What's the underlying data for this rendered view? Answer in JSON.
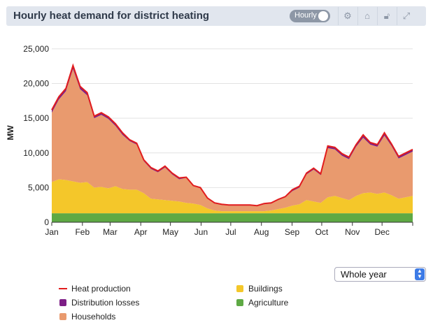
{
  "header": {
    "title": "Hourly heat demand for district heating",
    "toggle_label": "Hourly"
  },
  "controls": {
    "period_select": "Whole year"
  },
  "colors": {
    "header_bg": "#e1e6ee",
    "heat_production": "#e21d1d",
    "distribution_losses": "#7d1e86",
    "households": "#e99a6e",
    "buildings": "#f4c72a",
    "agriculture": "#5ea944"
  },
  "chart_data": {
    "type": "area",
    "title": "Hourly heat demand for district heating",
    "ylabel": "MW",
    "xlabel": "",
    "ylim": [
      0,
      26000
    ],
    "y_ticks": [
      "0",
      "5,000",
      "10,000",
      "15,000",
      "20,000",
      "25,000"
    ],
    "x_ticks": [
      "Jan",
      "Feb",
      "Mar",
      "Apr",
      "May",
      "Jun",
      "Jul",
      "Aug",
      "Sep",
      "Oct",
      "Nov",
      "Dec"
    ],
    "grid": "horizontal",
    "legend_position": "bottom-left",
    "weeks": [
      1,
      2,
      3,
      4,
      5,
      6,
      7,
      8,
      9,
      10,
      11,
      12,
      13,
      14,
      15,
      16,
      17,
      18,
      19,
      20,
      21,
      22,
      23,
      24,
      25,
      26,
      27,
      28,
      29,
      30,
      31,
      32,
      33,
      34,
      35,
      36,
      37,
      38,
      39,
      40,
      41,
      42,
      43,
      44,
      45,
      46,
      47,
      48,
      49,
      50,
      51,
      52
    ],
    "series": [
      {
        "name": "Agriculture",
        "stack": 1,
        "values": [
          1300,
          1300,
          1300,
          1300,
          1300,
          1300,
          1300,
          1300,
          1300,
          1300,
          1300,
          1300,
          1300,
          1300,
          1300,
          1300,
          1300,
          1300,
          1300,
          1300,
          1300,
          1300,
          1300,
          1300,
          1300,
          1300,
          1300,
          1300,
          1300,
          1300,
          1300,
          1300,
          1300,
          1300,
          1300,
          1300,
          1300,
          1300,
          1300,
          1300,
          1300,
          1300,
          1300,
          1300,
          1300,
          1300,
          1300,
          1300,
          1300,
          1300,
          1300,
          1300
        ]
      },
      {
        "name": "Buildings",
        "stack": 2,
        "values": [
          4500,
          4900,
          4800,
          4600,
          4400,
          4500,
          3700,
          3800,
          3600,
          3900,
          3500,
          3400,
          3400,
          2900,
          2100,
          2000,
          1900,
          1800,
          1700,
          1500,
          1400,
          1200,
          700,
          400,
          300,
          300,
          300,
          300,
          300,
          300,
          300,
          400,
          600,
          800,
          1100,
          1300,
          1900,
          1700,
          1500,
          2300,
          2500,
          2200,
          1900,
          2500,
          2900,
          3000,
          2800,
          3000,
          2600,
          2100,
          2300,
          2500
        ]
      },
      {
        "name": "Households",
        "stack": 3,
        "values": [
          10000,
          11500,
          12800,
          16200,
          13500,
          12500,
          10000,
          10400,
          10000,
          8700,
          7800,
          7000,
          6500,
          4600,
          4300,
          3900,
          4700,
          3800,
          3200,
          3600,
          2500,
          2400,
          1400,
          1000,
          900,
          800,
          800,
          800,
          800,
          700,
          1000,
          1000,
          1300,
          1500,
          2100,
          2400,
          3700,
          4600,
          4000,
          7100,
          6700,
          6100,
          5900,
          7100,
          8000,
          6900,
          6800,
          8200,
          7100,
          5800,
          6100,
          6400
        ]
      },
      {
        "name": "Distribution losses",
        "stack": 4,
        "values": [
          400,
          400,
          400,
          500,
          400,
          400,
          300,
          300,
          300,
          300,
          300,
          200,
          200,
          200,
          200,
          200,
          200,
          200,
          200,
          100,
          100,
          100,
          100,
          100,
          100,
          100,
          100,
          100,
          100,
          100,
          100,
          100,
          100,
          100,
          200,
          200,
          200,
          200,
          200,
          300,
          300,
          300,
          300,
          300,
          400,
          300,
          300,
          400,
          300,
          300,
          300,
          300
        ]
      },
      {
        "name": "Heat production",
        "stack": "line",
        "values": [
          16200,
          18100,
          19300,
          22600,
          19600,
          18700,
          15300,
          15800,
          15200,
          14200,
          12900,
          11900,
          11400,
          9000,
          7900,
          7400,
          8100,
          7100,
          6400,
          6500,
          5300,
          5000,
          3500,
          2800,
          2600,
          2500,
          2500,
          2500,
          2500,
          2400,
          2700,
          2800,
          3300,
          3700,
          4700,
          5200,
          7100,
          7800,
          7000,
          11000,
          10800,
          9900,
          9400,
          11200,
          12600,
          11500,
          11200,
          12900,
          11300,
          9500,
          10000,
          10500
        ]
      }
    ]
  },
  "legend": {
    "heat_production": "Heat production",
    "distribution_losses": "Distribution losses",
    "households": "Households",
    "buildings": "Buildings",
    "agriculture": "Agriculture"
  }
}
